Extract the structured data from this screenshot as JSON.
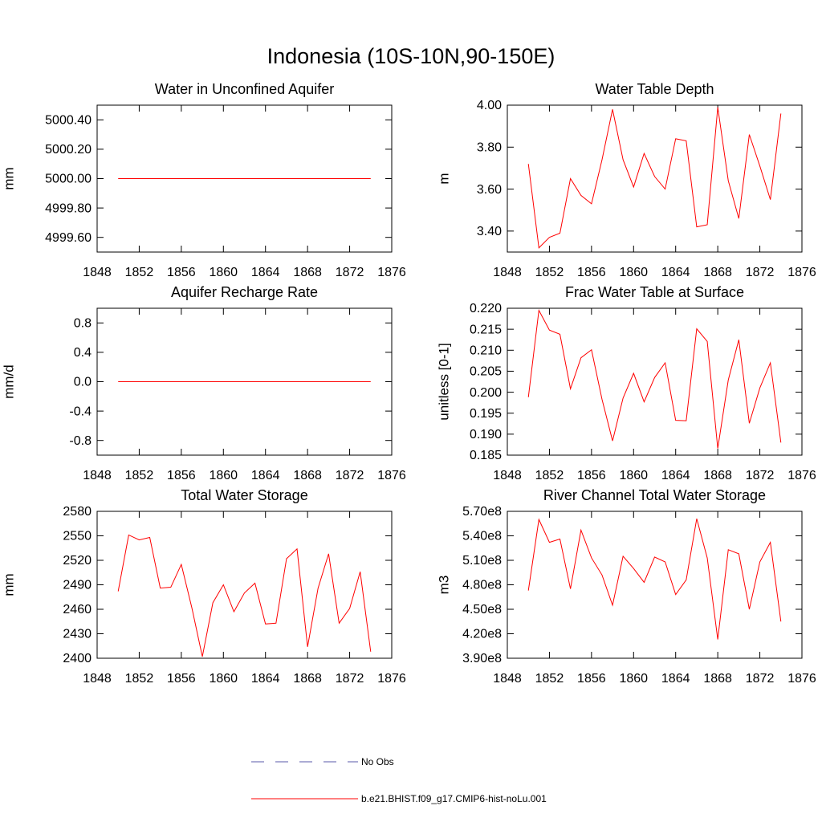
{
  "title": "Indonesia (10S-10N,90-150E)",
  "legend": [
    {
      "name": "No Obs",
      "color": "#5a5aa8",
      "dash": true
    },
    {
      "name": "b.e21.BHIST.f09_g17.CMIP6-hist-noLu.001",
      "color": "#ff0000",
      "dash": false
    }
  ],
  "chart_data": [
    {
      "type": "line",
      "title": "Water in Unconfined Aquifer",
      "y_label": "mm",
      "color": "#ff0000",
      "x": [
        1850,
        1851,
        1852,
        1853,
        1854,
        1855,
        1856,
        1857,
        1858,
        1859,
        1860,
        1861,
        1862,
        1863,
        1864,
        1865,
        1866,
        1867,
        1868,
        1869,
        1870,
        1871,
        1872,
        1873,
        1874
      ],
      "values": [
        5000,
        5000,
        5000,
        5000,
        5000,
        5000,
        5000,
        5000,
        5000,
        5000,
        5000,
        5000,
        5000,
        5000,
        5000,
        5000,
        5000,
        5000,
        5000,
        5000,
        5000,
        5000,
        5000,
        5000,
        5000
      ],
      "xlim": [
        1848,
        1876
      ],
      "xticks": [
        1848,
        1852,
        1856,
        1860,
        1864,
        1868,
        1872,
        1876
      ],
      "ylim": [
        4999.5,
        5000.5
      ],
      "yticks": [
        {
          "value": 4999.6,
          "label": "4999.60"
        },
        {
          "value": 4999.8,
          "label": "4999.80"
        },
        {
          "value": 5000,
          "label": "5000.00"
        },
        {
          "value": 5000.2,
          "label": "5000.20"
        },
        {
          "value": 5000.4,
          "label": "5000.40"
        }
      ]
    },
    {
      "type": "line",
      "title": "Water Table Depth",
      "y_label": "m",
      "color": "#ff0000",
      "x": [
        1850,
        1851,
        1852,
        1853,
        1854,
        1855,
        1856,
        1857,
        1858,
        1859,
        1860,
        1861,
        1862,
        1863,
        1864,
        1865,
        1866,
        1867,
        1868,
        1869,
        1870,
        1871,
        1872,
        1873,
        1874
      ],
      "values": [
        3.72,
        3.32,
        3.37,
        3.39,
        3.65,
        3.57,
        3.53,
        3.74,
        3.98,
        3.74,
        3.61,
        3.77,
        3.66,
        3.6,
        3.84,
        3.83,
        3.42,
        3.43,
        3.99,
        3.64,
        3.46,
        3.86,
        3.71,
        3.55,
        3.96
      ],
      "xlim": [
        1848,
        1876
      ],
      "xticks": [
        1848,
        1852,
        1856,
        1860,
        1864,
        1868,
        1872,
        1876
      ],
      "ylim": [
        3.3,
        4.0
      ],
      "yticks": [
        {
          "value": 3.4,
          "label": "3.40"
        },
        {
          "value": 3.6,
          "label": "3.60"
        },
        {
          "value": 3.8,
          "label": "3.80"
        },
        {
          "value": 4,
          "label": "4.00"
        }
      ]
    },
    {
      "type": "line",
      "title": "Aquifer Recharge Rate",
      "y_label": "mm/d",
      "color": "#ff0000",
      "x": [
        1850,
        1851,
        1852,
        1853,
        1854,
        1855,
        1856,
        1857,
        1858,
        1859,
        1860,
        1861,
        1862,
        1863,
        1864,
        1865,
        1866,
        1867,
        1868,
        1869,
        1870,
        1871,
        1872,
        1873,
        1874
      ],
      "values": [
        0,
        0,
        0,
        0,
        0,
        0,
        0,
        0,
        0,
        0,
        0,
        0,
        0,
        0,
        0,
        0,
        0,
        0,
        0,
        0,
        0,
        0,
        0,
        0,
        0
      ],
      "xlim": [
        1848,
        1876
      ],
      "xticks": [
        1848,
        1852,
        1856,
        1860,
        1864,
        1868,
        1872,
        1876
      ],
      "ylim": [
        -1,
        1
      ],
      "yticks": [
        -0.8,
        -0.4,
        {
          "value": 0,
          "label": "0.0"
        },
        0.4,
        0.8
      ]
    },
    {
      "type": "line",
      "title": "Frac Water Table at Surface",
      "y_label": "unitless [0-1]",
      "color": "#ff0000",
      "x": [
        1850,
        1851,
        1852,
        1853,
        1854,
        1855,
        1856,
        1857,
        1858,
        1859,
        1860,
        1861,
        1862,
        1863,
        1864,
        1865,
        1866,
        1867,
        1868,
        1869,
        1870,
        1871,
        1872,
        1873,
        1874
      ],
      "values": [
        0.1988,
        0.2195,
        0.2148,
        0.2138,
        0.2008,
        0.2082,
        0.2101,
        0.1983,
        0.1884,
        0.1986,
        0.2045,
        0.1977,
        0.2035,
        0.207,
        0.1933,
        0.1932,
        0.2151,
        0.2121,
        0.1866,
        0.2029,
        0.2125,
        0.1926,
        0.201,
        0.207,
        0.188
      ],
      "xlim": [
        1848,
        1876
      ],
      "xticks": [
        1848,
        1852,
        1856,
        1860,
        1864,
        1868,
        1872,
        1876
      ],
      "ylim": [
        0.185,
        0.22
      ],
      "yticks": [
        0.185,
        {
          "value": 0.19,
          "label": "0.190"
        },
        0.195,
        {
          "value": 0.2,
          "label": "0.200"
        },
        0.205,
        {
          "value": 0.21,
          "label": "0.210"
        },
        0.215,
        {
          "value": 0.22,
          "label": "0.220"
        }
      ]
    },
    {
      "type": "line",
      "title": "Total Water Storage",
      "y_label": "mm",
      "color": "#ff0000",
      "x": [
        1850,
        1851,
        1852,
        1853,
        1854,
        1855,
        1856,
        1857,
        1858,
        1859,
        1860,
        1861,
        1862,
        1863,
        1864,
        1865,
        1866,
        1867,
        1868,
        1869,
        1870,
        1871,
        1872,
        1873,
        1874
      ],
      "values": [
        2482,
        2551,
        2545,
        2548,
        2486,
        2487,
        2515,
        2462,
        2402,
        2468,
        2490,
        2457,
        2480,
        2492,
        2442,
        2443,
        2522,
        2534,
        2414,
        2486,
        2528,
        2443,
        2461,
        2506,
        2408
      ],
      "xlim": [
        1848,
        1876
      ],
      "xticks": [
        1848,
        1852,
        1856,
        1860,
        1864,
        1868,
        1872,
        1876
      ],
      "ylim": [
        2400,
        2580
      ],
      "yticks": [
        2400,
        2430,
        2460,
        2490,
        2520,
        2550,
        2580
      ]
    },
    {
      "type": "line",
      "title": "River Channel Total Water Storage",
      "y_label": "m3",
      "color": "#ff0000",
      "x": [
        1850,
        1851,
        1852,
        1853,
        1854,
        1855,
        1856,
        1857,
        1858,
        1859,
        1860,
        1861,
        1862,
        1863,
        1864,
        1865,
        1866,
        1867,
        1868,
        1869,
        1870,
        1871,
        1872,
        1873,
        1874
      ],
      "values": [
        473000000,
        560000000,
        532000000,
        536000000,
        475000000,
        547000000,
        513000000,
        492000000,
        455000000,
        515000000,
        500000000,
        483000000,
        514000000,
        508000000,
        468000000,
        486000000,
        561000000,
        513000000,
        413000000,
        523000000,
        518000000,
        450000000,
        508000000,
        532000000,
        435000000
      ],
      "xlim": [
        1848,
        1876
      ],
      "xticks": [
        1848,
        1852,
        1856,
        1860,
        1864,
        1868,
        1872,
        1876
      ],
      "ylim": [
        390000000,
        570000000
      ],
      "yticks": [
        {
          "value": 390000000,
          "label": "3.90e8"
        },
        {
          "value": 420000000,
          "label": "4.20e8"
        },
        {
          "value": 450000000,
          "label": "4.50e8"
        },
        {
          "value": 480000000,
          "label": "4.80e8"
        },
        {
          "value": 510000000,
          "label": "5.10e8"
        },
        {
          "value": 540000000,
          "label": "5.40e8"
        },
        {
          "value": 570000000,
          "label": "5.70e8"
        }
      ]
    }
  ]
}
